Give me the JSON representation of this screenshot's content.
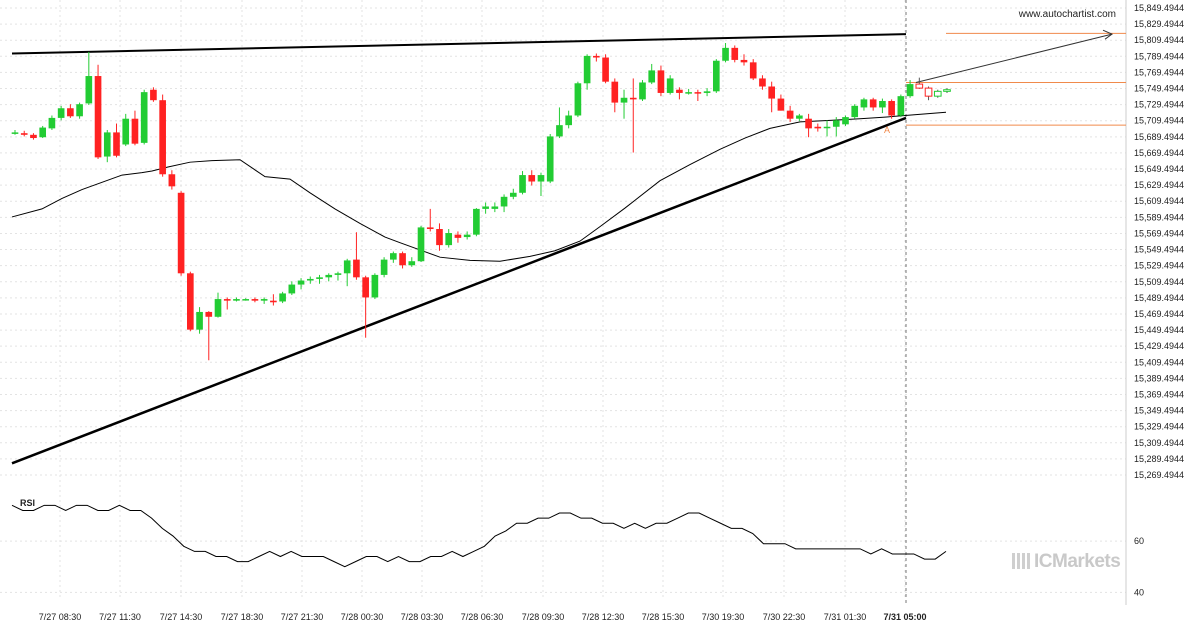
{
  "watermark": "www.autochartist.com",
  "brand": "ICMarkets",
  "rsi_label": "RSI",
  "pattern_label": "A",
  "colors": {
    "up": "#22cc33",
    "down": "#ff2222",
    "line": "#000000",
    "level": "#f08a4b",
    "grid": "#e3e3e3"
  },
  "chart_data": [
    {
      "type": "candlestick",
      "title": "",
      "xlabel": "",
      "ylabel": "",
      "ylim": [
        15269.4944,
        15849.4944
      ],
      "y_ticks": [
        "15,849.4944",
        "15,829.4944",
        "15,809.4944",
        "15,789.4944",
        "15,769.4944",
        "15,749.4944",
        "15,729.4944",
        "15,709.4944",
        "15,689.4944",
        "15,669.4944",
        "15,649.4944",
        "15,629.4944",
        "15,609.4944",
        "15,589.4944",
        "15,569.4944",
        "15,549.4944",
        "15,529.4944",
        "15,509.4944",
        "15,489.4944",
        "15,469.4944",
        "15,449.4944",
        "15,429.4944",
        "15,409.4944",
        "15,389.4944",
        "15,369.4944",
        "15,349.4944",
        "15,329.4944",
        "15,309.4944",
        "15,289.4944",
        "15,269.4944"
      ],
      "x_ticks": [
        "7/27 08:30",
        "7/27 11:30",
        "7/27 14:30",
        "7/27 18:30",
        "7/27 21:30",
        "7/28 00:30",
        "7/28 03:30",
        "7/28 06:30",
        "7/28 09:30",
        "7/28 12:30",
        "7/28 15:30",
        "7/30 19:30",
        "7/30 22:30",
        "7/31 01:30",
        "7/31 05:00"
      ],
      "current_x_label": "7/31 05:00",
      "candles": [
        {
          "o": 15695,
          "h": 15698,
          "l": 15692,
          "c": 15695
        },
        {
          "o": 15694,
          "h": 15697,
          "l": 15690,
          "c": 15692
        },
        {
          "o": 15692,
          "h": 15694,
          "l": 15686,
          "c": 15688
        },
        {
          "o": 15689,
          "h": 15703,
          "l": 15688,
          "c": 15701
        },
        {
          "o": 15700,
          "h": 15716,
          "l": 15698,
          "c": 15713
        },
        {
          "o": 15713,
          "h": 15728,
          "l": 15710,
          "c": 15725
        },
        {
          "o": 15725,
          "h": 15730,
          "l": 15713,
          "c": 15715
        },
        {
          "o": 15715,
          "h": 15732,
          "l": 15712,
          "c": 15730
        },
        {
          "o": 15731,
          "h": 15795,
          "l": 15729,
          "c": 15765
        },
        {
          "o": 15765,
          "h": 15779,
          "l": 15662,
          "c": 15664
        },
        {
          "o": 15665,
          "h": 15698,
          "l": 15658,
          "c": 15695
        },
        {
          "o": 15695,
          "h": 15706,
          "l": 15664,
          "c": 15666
        },
        {
          "o": 15680,
          "h": 15718,
          "l": 15678,
          "c": 15712
        },
        {
          "o": 15712,
          "h": 15722,
          "l": 15679,
          "c": 15681
        },
        {
          "o": 15682,
          "h": 15748,
          "l": 15680,
          "c": 15745
        },
        {
          "o": 15748,
          "h": 15751,
          "l": 15733,
          "c": 15735
        },
        {
          "o": 15735,
          "h": 15742,
          "l": 15640,
          "c": 15643
        },
        {
          "o": 15643,
          "h": 15648,
          "l": 15624,
          "c": 15628
        },
        {
          "o": 15620,
          "h": 15622,
          "l": 15517,
          "c": 15520
        },
        {
          "o": 15520,
          "h": 15522,
          "l": 15448,
          "c": 15450
        },
        {
          "o": 15450,
          "h": 15478,
          "l": 15445,
          "c": 15472
        },
        {
          "o": 15472,
          "h": 15473,
          "l": 15412,
          "c": 15466
        },
        {
          "o": 15466,
          "h": 15496,
          "l": 15465,
          "c": 15488
        },
        {
          "o": 15488,
          "h": 15490,
          "l": 15475,
          "c": 15486
        },
        {
          "o": 15486,
          "h": 15490,
          "l": 15485,
          "c": 15488
        },
        {
          "o": 15487,
          "h": 15489,
          "l": 15486,
          "c": 15488
        },
        {
          "o": 15488,
          "h": 15490,
          "l": 15484,
          "c": 15486
        },
        {
          "o": 15486,
          "h": 15490,
          "l": 15482,
          "c": 15488
        },
        {
          "o": 15486,
          "h": 15494,
          "l": 15480,
          "c": 15484
        },
        {
          "o": 15485,
          "h": 15497,
          "l": 15483,
          "c": 15495
        },
        {
          "o": 15495,
          "h": 15510,
          "l": 15493,
          "c": 15506
        },
        {
          "o": 15506,
          "h": 15514,
          "l": 15500,
          "c": 15511
        },
        {
          "o": 15511,
          "h": 15516,
          "l": 15507,
          "c": 15513
        },
        {
          "o": 15513,
          "h": 15518,
          "l": 15507,
          "c": 15515
        },
        {
          "o": 15515,
          "h": 15520,
          "l": 15510,
          "c": 15518
        },
        {
          "o": 15518,
          "h": 15522,
          "l": 15511,
          "c": 15520
        },
        {
          "o": 15520,
          "h": 15538,
          "l": 15504,
          "c": 15536
        },
        {
          "o": 15537,
          "h": 15571,
          "l": 15512,
          "c": 15515
        },
        {
          "o": 15515,
          "h": 15517,
          "l": 15440,
          "c": 15490
        },
        {
          "o": 15490,
          "h": 15520,
          "l": 15488,
          "c": 15518
        },
        {
          "o": 15518,
          "h": 15540,
          "l": 15515,
          "c": 15537
        },
        {
          "o": 15537,
          "h": 15547,
          "l": 15533,
          "c": 15545
        },
        {
          "o": 15545,
          "h": 15547,
          "l": 15526,
          "c": 15530
        },
        {
          "o": 15530,
          "h": 15540,
          "l": 15528,
          "c": 15535
        },
        {
          "o": 15535,
          "h": 15579,
          "l": 15534,
          "c": 15577
        },
        {
          "o": 15577,
          "h": 15600,
          "l": 15572,
          "c": 15575
        },
        {
          "o": 15575,
          "h": 15582,
          "l": 15548,
          "c": 15555
        },
        {
          "o": 15555,
          "h": 15575,
          "l": 15552,
          "c": 15570
        },
        {
          "o": 15568,
          "h": 15572,
          "l": 15558,
          "c": 15564
        },
        {
          "o": 15565,
          "h": 15572,
          "l": 15562,
          "c": 15568
        },
        {
          "o": 15568,
          "h": 15601,
          "l": 15566,
          "c": 15600
        },
        {
          "o": 15600,
          "h": 15608,
          "l": 15594,
          "c": 15603
        },
        {
          "o": 15600,
          "h": 15608,
          "l": 15596,
          "c": 15603
        },
        {
          "o": 15603,
          "h": 15618,
          "l": 15596,
          "c": 15615
        },
        {
          "o": 15615,
          "h": 15625,
          "l": 15612,
          "c": 15620
        },
        {
          "o": 15620,
          "h": 15647,
          "l": 15618,
          "c": 15642
        },
        {
          "o": 15642,
          "h": 15648,
          "l": 15629,
          "c": 15634
        },
        {
          "o": 15634,
          "h": 15645,
          "l": 15616,
          "c": 15642
        },
        {
          "o": 15634,
          "h": 15693,
          "l": 15632,
          "c": 15690
        },
        {
          "o": 15690,
          "h": 15726,
          "l": 15688,
          "c": 15704
        },
        {
          "o": 15704,
          "h": 15722,
          "l": 15700,
          "c": 15716
        },
        {
          "o": 15716,
          "h": 15758,
          "l": 15714,
          "c": 15756
        },
        {
          "o": 15756,
          "h": 15792,
          "l": 15748,
          "c": 15790
        },
        {
          "o": 15790,
          "h": 15793,
          "l": 15783,
          "c": 15788
        },
        {
          "o": 15788,
          "h": 15792,
          "l": 15756,
          "c": 15758
        },
        {
          "o": 15758,
          "h": 15762,
          "l": 15720,
          "c": 15732
        },
        {
          "o": 15732,
          "h": 15748,
          "l": 15712,
          "c": 15738
        },
        {
          "o": 15738,
          "h": 15762,
          "l": 15670,
          "c": 15736
        },
        {
          "o": 15736,
          "h": 15760,
          "l": 15734,
          "c": 15757
        },
        {
          "o": 15757,
          "h": 15780,
          "l": 15755,
          "c": 15772
        },
        {
          "o": 15772,
          "h": 15778,
          "l": 15740,
          "c": 15744
        },
        {
          "o": 15744,
          "h": 15766,
          "l": 15742,
          "c": 15762
        },
        {
          "o": 15748,
          "h": 15751,
          "l": 15736,
          "c": 15744
        },
        {
          "o": 15744,
          "h": 15749,
          "l": 15742,
          "c": 15745
        },
        {
          "o": 15745,
          "h": 15748,
          "l": 15734,
          "c": 15744
        },
        {
          "o": 15744,
          "h": 15750,
          "l": 15740,
          "c": 15746
        },
        {
          "o": 15746,
          "h": 15786,
          "l": 15744,
          "c": 15784
        },
        {
          "o": 15784,
          "h": 15806,
          "l": 15782,
          "c": 15800
        },
        {
          "o": 15800,
          "h": 15803,
          "l": 15782,
          "c": 15785
        },
        {
          "o": 15785,
          "h": 15792,
          "l": 15778,
          "c": 15782
        },
        {
          "o": 15782,
          "h": 15786,
          "l": 15760,
          "c": 15762
        },
        {
          "o": 15762,
          "h": 15766,
          "l": 15748,
          "c": 15752
        },
        {
          "o": 15752,
          "h": 15758,
          "l": 15720,
          "c": 15737
        },
        {
          "o": 15737,
          "h": 15742,
          "l": 15722,
          "c": 15722
        },
        {
          "o": 15722,
          "h": 15728,
          "l": 15708,
          "c": 15712
        },
        {
          "o": 15712,
          "h": 15718,
          "l": 15709,
          "c": 15716
        },
        {
          "o": 15712,
          "h": 15718,
          "l": 15689,
          "c": 15700
        },
        {
          "o": 15702,
          "h": 15706,
          "l": 15696,
          "c": 15700
        },
        {
          "o": 15701,
          "h": 15710,
          "l": 15690,
          "c": 15702
        },
        {
          "o": 15702,
          "h": 15714,
          "l": 15690,
          "c": 15710
        },
        {
          "o": 15705,
          "h": 15716,
          "l": 15703,
          "c": 15714
        },
        {
          "o": 15714,
          "h": 15730,
          "l": 15712,
          "c": 15728
        },
        {
          "o": 15726,
          "h": 15738,
          "l": 15722,
          "c": 15736
        },
        {
          "o": 15736,
          "h": 15738,
          "l": 15722,
          "c": 15726
        },
        {
          "o": 15726,
          "h": 15737,
          "l": 15719,
          "c": 15734
        },
        {
          "o": 15734,
          "h": 15736,
          "l": 15712,
          "c": 15716
        },
        {
          "o": 15716,
          "h": 15742,
          "l": 15714,
          "c": 15740
        },
        {
          "o": 15740,
          "h": 15760,
          "l": 15738,
          "c": 15755
        },
        {
          "o": 15755,
          "h": 15763,
          "l": 15749,
          "c": 15750
        },
        {
          "o": 15750,
          "h": 15752,
          "l": 15735,
          "c": 15740
        },
        {
          "o": 15740,
          "h": 15748,
          "l": 15738,
          "c": 15746
        },
        {
          "o": 15746,
          "h": 15750,
          "l": 15744,
          "c": 15748
        }
      ],
      "ma": [
        15590,
        15600,
        15613,
        15624,
        15633,
        15642,
        15645,
        15647,
        15652,
        15658,
        15660,
        15661,
        15640,
        15637,
        15620,
        15600,
        15582,
        15565,
        15558,
        15549,
        15540,
        15536,
        15535,
        15541,
        15548,
        15560,
        15578,
        15601,
        15635,
        15655,
        15674,
        15688,
        15700,
        15708,
        15710,
        15712,
        15714,
        15716,
        15720
      ],
      "ma_x": [
        12,
        42,
        62,
        82,
        102,
        122,
        142,
        152,
        168,
        190,
        212,
        240,
        265,
        290,
        310,
        335,
        360,
        385,
        400,
        420,
        440,
        470,
        500,
        530,
        555,
        580,
        600,
        625,
        660,
        690,
        720,
        745,
        770,
        800,
        830,
        860,
        885,
        905,
        946
      ],
      "resistance_line": [
        [
          12,
          15793
        ],
        [
          906,
          15817
        ]
      ],
      "support_line": [
        [
          12,
          15284
        ],
        [
          906,
          15713
        ]
      ],
      "projection": [
        [
          916,
          15757
        ],
        [
          1112,
          15817
        ]
      ],
      "levels": [
        {
          "y": 15757,
          "x1": 906,
          "x2": 1126
        },
        {
          "y": 15704,
          "x1": 906,
          "x2": 1126
        },
        {
          "y": 15818,
          "x1": 946,
          "x2": 1126
        }
      ],
      "vline_x": 906
    },
    {
      "type": "line",
      "title": "RSI",
      "ylim": [
        37,
        80
      ],
      "y_ticks": [
        "60",
        "40"
      ],
      "values": [
        74,
        72,
        72,
        74,
        74,
        72,
        74,
        74,
        72,
        72,
        74,
        72,
        72,
        69,
        65,
        62,
        58,
        56,
        56,
        54,
        54,
        52,
        52,
        54,
        56,
        54,
        56,
        54,
        54,
        54,
        52,
        50,
        52,
        54,
        54,
        52,
        54,
        52,
        52,
        54,
        54,
        56,
        54,
        56,
        58,
        62,
        64,
        67,
        67,
        69,
        69,
        71,
        71,
        69,
        69,
        67,
        67,
        65,
        67,
        65,
        67,
        67,
        69,
        71,
        71,
        69,
        67,
        65,
        65,
        63,
        59,
        59,
        59,
        57,
        57,
        57,
        57,
        57,
        57,
        57,
        55,
        57,
        55,
        55,
        55,
        53,
        53,
        56
      ],
      "x_start": 12,
      "x_end": 946
    }
  ]
}
